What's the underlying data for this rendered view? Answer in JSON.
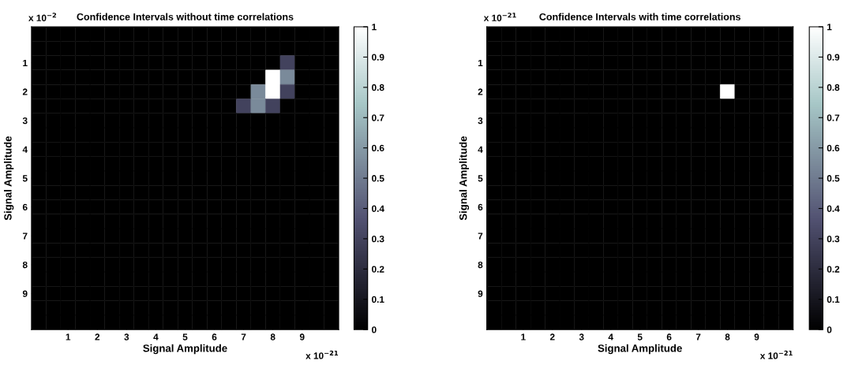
{
  "chart_data": [
    {
      "type": "heatmap",
      "title": "Confidence Intervals without time correlations",
      "xlabel": "Signal Amplitude",
      "ylabel": "Signal Amplitude",
      "categories": [
        null,
        null,
        "1",
        null,
        "2",
        null,
        "3",
        null,
        "4",
        null,
        "5",
        null,
        "6",
        null,
        "7",
        null,
        "8",
        null,
        "9",
        null,
        null
      ],
      "y_categories": [
        null,
        null,
        "1",
        null,
        "2",
        null,
        "3",
        null,
        "4",
        null,
        "5",
        null,
        "6",
        null,
        "7",
        null,
        "8",
        null,
        "9",
        null,
        null
      ],
      "clim": [
        0,
        1
      ],
      "cticks": [
        0,
        0.1,
        0.2,
        0.3,
        0.4,
        0.5,
        0.6,
        0.7,
        0.8,
        0.9,
        1
      ],
      "annotations": [
        "x 10$^{−21}$",
        "x 10$^{−2}$"
      ],
      "cells": [
        [
          0,
          0,
          0,
          0,
          0,
          0,
          0,
          0,
          0,
          0,
          0,
          0,
          0,
          0,
          0,
          0,
          0,
          0,
          0,
          0,
          0
        ],
        [
          0,
          0,
          0,
          0,
          0,
          0,
          0,
          0,
          0,
          0,
          0,
          0,
          0,
          0,
          0,
          0,
          0,
          0,
          0,
          0,
          0
        ],
        [
          0,
          0,
          0,
          0,
          0,
          0,
          0,
          0,
          0,
          0,
          0,
          0,
          0,
          0,
          0,
          0,
          0,
          0.3,
          0,
          0,
          0
        ],
        [
          0,
          0,
          0,
          0,
          0,
          0,
          0,
          0,
          0,
          0,
          0,
          0,
          0,
          0,
          0,
          0,
          1,
          0.55,
          0,
          0,
          0
        ],
        [
          0,
          0,
          0,
          0,
          0,
          0,
          0,
          0,
          0,
          0,
          0,
          0,
          0,
          0,
          0,
          0.55,
          1,
          0.3,
          0,
          0,
          0
        ],
        [
          0,
          0,
          0,
          0,
          0,
          0,
          0,
          0,
          0,
          0,
          0,
          0,
          0,
          0,
          0.3,
          0.55,
          0.3,
          0,
          0,
          0,
          0
        ],
        [
          0,
          0,
          0,
          0,
          0,
          0,
          0,
          0,
          0,
          0,
          0,
          0,
          0,
          0,
          0,
          0,
          0,
          0,
          0,
          0,
          0
        ],
        [
          0,
          0,
          0,
          0,
          0,
          0,
          0,
          0,
          0,
          0,
          0,
          0,
          0,
          0,
          0,
          0,
          0,
          0,
          0,
          0,
          0
        ],
        [
          0,
          0,
          0,
          0,
          0,
          0,
          0,
          0,
          0,
          0,
          0,
          0,
          0,
          0,
          0,
          0,
          0,
          0,
          0,
          0,
          0
        ],
        [
          0,
          0,
          0,
          0,
          0,
          0,
          0,
          0,
          0,
          0,
          0,
          0,
          0,
          0,
          0,
          0,
          0,
          0,
          0,
          0,
          0
        ],
        [
          0,
          0,
          0,
          0,
          0,
          0,
          0,
          0,
          0,
          0,
          0,
          0,
          0,
          0,
          0,
          0,
          0,
          0,
          0,
          0,
          0
        ],
        [
          0,
          0,
          0,
          0,
          0,
          0,
          0,
          0,
          0,
          0,
          0,
          0,
          0,
          0,
          0,
          0,
          0,
          0,
          0,
          0,
          0
        ],
        [
          0,
          0,
          0,
          0,
          0,
          0,
          0,
          0,
          0,
          0,
          0,
          0,
          0,
          0,
          0,
          0,
          0,
          0,
          0,
          0,
          0
        ],
        [
          0,
          0,
          0,
          0,
          0,
          0,
          0,
          0,
          0,
          0,
          0,
          0,
          0,
          0,
          0,
          0,
          0,
          0,
          0,
          0,
          0
        ],
        [
          0,
          0,
          0,
          0,
          0,
          0,
          0,
          0,
          0,
          0,
          0,
          0,
          0,
          0,
          0,
          0,
          0,
          0,
          0,
          0,
          0
        ],
        [
          0,
          0,
          0,
          0,
          0,
          0,
          0,
          0,
          0,
          0,
          0,
          0,
          0,
          0,
          0,
          0,
          0,
          0,
          0,
          0,
          0
        ],
        [
          0,
          0,
          0,
          0,
          0,
          0,
          0,
          0,
          0,
          0,
          0,
          0,
          0,
          0,
          0,
          0,
          0,
          0,
          0,
          0,
          0
        ],
        [
          0,
          0,
          0,
          0,
          0,
          0,
          0,
          0,
          0,
          0,
          0,
          0,
          0,
          0,
          0,
          0,
          0,
          0,
          0,
          0,
          0
        ],
        [
          0,
          0,
          0,
          0,
          0,
          0,
          0,
          0,
          0,
          0,
          0,
          0,
          0,
          0,
          0,
          0,
          0,
          0,
          0,
          0,
          0
        ],
        [
          0,
          0,
          0,
          0,
          0,
          0,
          0,
          0,
          0,
          0,
          0,
          0,
          0,
          0,
          0,
          0,
          0,
          0,
          0,
          0,
          0
        ],
        [
          0,
          0,
          0,
          0,
          0,
          0,
          0,
          0,
          0,
          0,
          0,
          0,
          0,
          0,
          0,
          0,
          0,
          0,
          0,
          0,
          0
        ]
      ]
    },
    {
      "type": "heatmap",
      "title": "Confidence Intervals with time correlations",
      "xlabel": "Signal Amplitude",
      "ylabel": "Signal Amplitude",
      "categories": [
        null,
        null,
        "1",
        null,
        "2",
        null,
        "3",
        null,
        "4",
        null,
        "5",
        null,
        "6",
        null,
        "7",
        null,
        "8",
        null,
        "9",
        null,
        null
      ],
      "y_categories": [
        null,
        null,
        "1",
        null,
        "2",
        null,
        "3",
        null,
        "4",
        null,
        "5",
        null,
        "6",
        null,
        "7",
        null,
        "8",
        null,
        "9",
        null,
        null
      ],
      "clim": [
        0,
        1
      ],
      "cticks": [
        0,
        0.1,
        0.2,
        0.3,
        0.4,
        0.5,
        0.6,
        0.7,
        0.8,
        0.9,
        1
      ],
      "annotations": [
        "x 10$^{−21}$",
        "x 10$^{−21}$"
      ],
      "cells": [
        [
          0,
          0,
          0,
          0,
          0,
          0,
          0,
          0,
          0,
          0,
          0,
          0,
          0,
          0,
          0,
          0,
          0,
          0,
          0,
          0,
          0
        ],
        [
          0,
          0,
          0,
          0,
          0,
          0,
          0,
          0,
          0,
          0,
          0,
          0,
          0,
          0,
          0,
          0,
          0,
          0,
          0,
          0,
          0
        ],
        [
          0,
          0,
          0,
          0,
          0,
          0,
          0,
          0,
          0,
          0,
          0,
          0,
          0,
          0,
          0,
          0,
          0,
          0,
          0,
          0,
          0
        ],
        [
          0,
          0,
          0,
          0,
          0,
          0,
          0,
          0,
          0,
          0,
          0,
          0,
          0,
          0,
          0,
          0,
          0,
          0,
          0,
          0,
          0
        ],
        [
          0,
          0,
          0,
          0,
          0,
          0,
          0,
          0,
          0,
          0,
          0,
          0,
          0,
          0,
          0,
          0,
          1,
          0,
          0,
          0,
          0
        ],
        [
          0,
          0,
          0,
          0,
          0,
          0,
          0,
          0,
          0,
          0,
          0,
          0,
          0,
          0,
          0,
          0,
          0,
          0,
          0,
          0,
          0
        ],
        [
          0,
          0,
          0,
          0,
          0,
          0,
          0,
          0,
          0,
          0,
          0,
          0,
          0,
          0,
          0,
          0,
          0,
          0,
          0,
          0,
          0
        ],
        [
          0,
          0,
          0,
          0,
          0,
          0,
          0,
          0,
          0,
          0,
          0,
          0,
          0,
          0,
          0,
          0,
          0,
          0,
          0,
          0,
          0
        ],
        [
          0,
          0,
          0,
          0,
          0,
          0,
          0,
          0,
          0,
          0,
          0,
          0,
          0,
          0,
          0,
          0,
          0,
          0,
          0,
          0,
          0
        ],
        [
          0,
          0,
          0,
          0,
          0,
          0,
          0,
          0,
          0,
          0,
          0,
          0,
          0,
          0,
          0,
          0,
          0,
          0,
          0,
          0,
          0
        ],
        [
          0,
          0,
          0,
          0,
          0,
          0,
          0,
          0,
          0,
          0,
          0,
          0,
          0,
          0,
          0,
          0,
          0,
          0,
          0,
          0,
          0
        ],
        [
          0,
          0,
          0,
          0,
          0,
          0,
          0,
          0,
          0,
          0,
          0,
          0,
          0,
          0,
          0,
          0,
          0,
          0,
          0,
          0,
          0
        ],
        [
          0,
          0,
          0,
          0,
          0,
          0,
          0,
          0,
          0,
          0,
          0,
          0,
          0,
          0,
          0,
          0,
          0,
          0,
          0,
          0,
          0
        ],
        [
          0,
          0,
          0,
          0,
          0,
          0,
          0,
          0,
          0,
          0,
          0,
          0,
          0,
          0,
          0,
          0,
          0,
          0,
          0,
          0,
          0
        ],
        [
          0,
          0,
          0,
          0,
          0,
          0,
          0,
          0,
          0,
          0,
          0,
          0,
          0,
          0,
          0,
          0,
          0,
          0,
          0,
          0,
          0
        ],
        [
          0,
          0,
          0,
          0,
          0,
          0,
          0,
          0,
          0,
          0,
          0,
          0,
          0,
          0,
          0,
          0,
          0,
          0,
          0,
          0,
          0
        ],
        [
          0,
          0,
          0,
          0,
          0,
          0,
          0,
          0,
          0,
          0,
          0,
          0,
          0,
          0,
          0,
          0,
          0,
          0,
          0,
          0,
          0
        ],
        [
          0,
          0,
          0,
          0,
          0,
          0,
          0,
          0,
          0,
          0,
          0,
          0,
          0,
          0,
          0,
          0,
          0,
          0,
          0,
          0,
          0
        ],
        [
          0,
          0,
          0,
          0,
          0,
          0,
          0,
          0,
          0,
          0,
          0,
          0,
          0,
          0,
          0,
          0,
          0,
          0,
          0,
          0,
          0
        ],
        [
          0,
          0,
          0,
          0,
          0,
          0,
          0,
          0,
          0,
          0,
          0,
          0,
          0,
          0,
          0,
          0,
          0,
          0,
          0,
          0,
          0
        ],
        [
          0,
          0,
          0,
          0,
          0,
          0,
          0,
          0,
          0,
          0,
          0,
          0,
          0,
          0,
          0,
          0,
          0,
          0,
          0,
          0,
          0
        ]
      ]
    }
  ]
}
